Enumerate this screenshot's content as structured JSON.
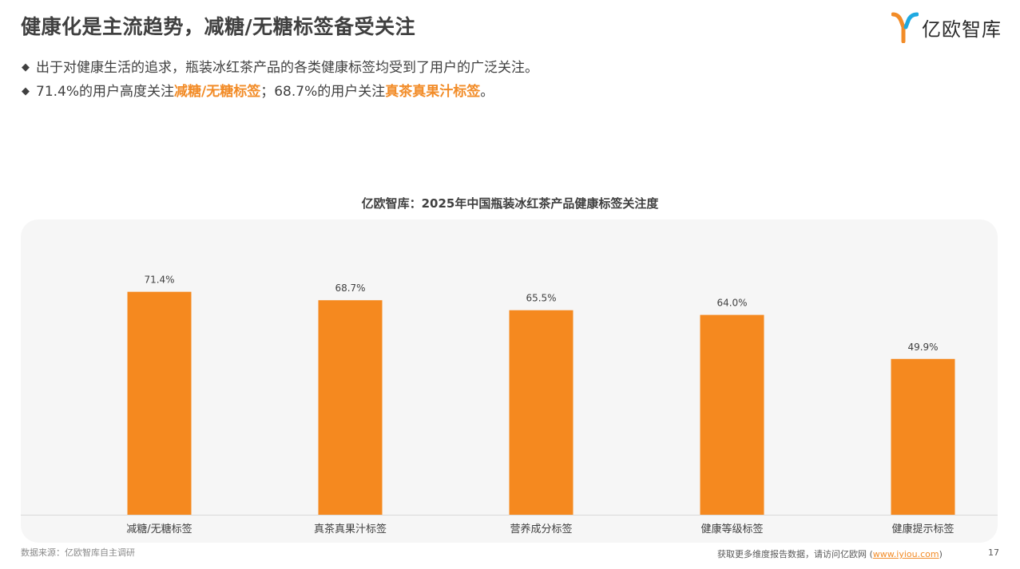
{
  "header": {
    "title": "健康化是主流趋势，减糖/无糖标签备受关注",
    "logo_text": "亿欧智库",
    "logo_icon": "yiou-logo-icon",
    "colors": {
      "brand_orange": "#F28C28",
      "brand_blue": "#1FA9E1"
    }
  },
  "bullets": [
    {
      "marker": "◆",
      "text": "出于对健康生活的追求，瓶装冰红茶产品的各类健康标签均受到了用户的广泛关注。"
    },
    {
      "marker": "◆",
      "part1": "71.4%的用户高度关注",
      "highlight1": "减糖/无糖标签",
      "part2": "；68.7%的用户关注",
      "highlight2": "真茶真果汁标签",
      "part3": "。"
    }
  ],
  "chart_data": {
    "type": "bar",
    "title": "亿欧智库：2025年中国瓶装冰红茶产品健康标签关注度",
    "categories": [
      "减糖/无糖标签",
      "真茶真果汁标签",
      "营养成分标签",
      "健康等级标签",
      "健康提示标签"
    ],
    "values": [
      71.4,
      68.7,
      65.5,
      64.0,
      49.9
    ],
    "value_labels": [
      "71.4%",
      "68.7%",
      "65.5%",
      "64.0%",
      "49.9%"
    ],
    "unit": "%",
    "ylim": [
      0,
      80
    ],
    "grid": false,
    "legend": "none",
    "bar_color": "#F5891F"
  },
  "footer": {
    "source": "数据来源：亿欧智库自主调研",
    "more_prefix": "获取更多维度报告数据，请访问亿欧网 (",
    "link": "www.iyiou.com",
    "more_suffix": ")",
    "page_number": "17"
  }
}
